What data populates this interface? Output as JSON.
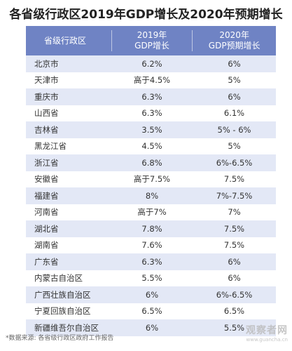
{
  "title": "各省级行政区2019年GDP增长及2020年预期增长",
  "table": {
    "headers": {
      "region": "省级行政区",
      "gdp2019_line1": "2019年",
      "gdp2019_line2": "GDP增长",
      "gdp2020_line1": "2020年",
      "gdp2020_line2": "GDP预期增长"
    },
    "rows": [
      {
        "region": "北京市",
        "gdp2019": "6.2%",
        "gdp2020": "6%"
      },
      {
        "region": "天津市",
        "gdp2019": "高于4.5%",
        "gdp2020": "5%"
      },
      {
        "region": "重庆市",
        "gdp2019": "6.3%",
        "gdp2020": "6%"
      },
      {
        "region": "山西省",
        "gdp2019": "6.3%",
        "gdp2020": "6.1%"
      },
      {
        "region": "吉林省",
        "gdp2019": "3.5%",
        "gdp2020": "5% - 6%"
      },
      {
        "region": "黑龙江省",
        "gdp2019": "4.5%",
        "gdp2020": "5%"
      },
      {
        "region": "浙江省",
        "gdp2019": "6.8%",
        "gdp2020": "6%-6.5%"
      },
      {
        "region": "安徽省",
        "gdp2019": "高于7.5%",
        "gdp2020": "7.5%"
      },
      {
        "region": "福建省",
        "gdp2019": "8%",
        "gdp2020": "7%-7.5%"
      },
      {
        "region": "河南省",
        "gdp2019": "高于7%",
        "gdp2020": "7%"
      },
      {
        "region": "湖北省",
        "gdp2019": "7.8%",
        "gdp2020": "7.5%"
      },
      {
        "region": "湖南省",
        "gdp2019": "7.6%",
        "gdp2020": "7.5%"
      },
      {
        "region": "广东省",
        "gdp2019": "6.3%",
        "gdp2020": "6%"
      },
      {
        "region": "内蒙古自治区",
        "gdp2019": "5.5%",
        "gdp2020": "6%"
      },
      {
        "region": "广西壮族自治区",
        "gdp2019": "6%",
        "gdp2020": "6%-6.5%"
      },
      {
        "region": "宁夏回族自治区",
        "gdp2019": "6.5%",
        "gdp2020": "6.5%"
      },
      {
        "region": "新疆维吾尔自治区",
        "gdp2019": "6%",
        "gdp2020": "5.5%"
      }
    ]
  },
  "source": "*数据来源: 各省级行政区政府工作报告",
  "watermark": {
    "main": "观察者网",
    "sub": "www.guancha.cn"
  },
  "colors": {
    "header_bg": "#6f83c4",
    "alt_row_bg": "#e3e8f6"
  }
}
